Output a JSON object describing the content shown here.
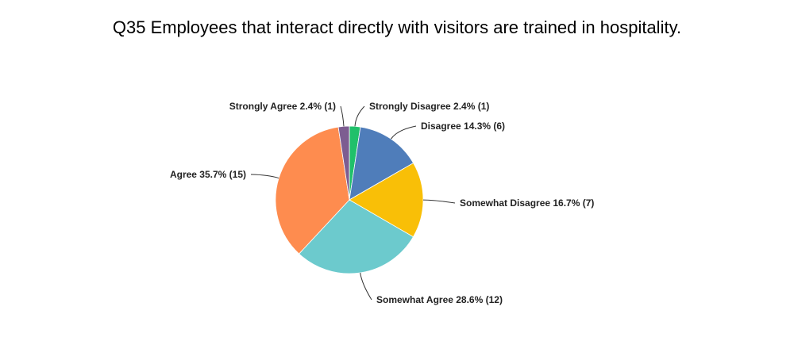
{
  "chart_data": {
    "type": "pie",
    "title": "Q35 Employees that interact directly with visitors are trained in hospitality.",
    "start_angle_deg": 0,
    "direction": "clockwise",
    "slices": [
      {
        "label": "Strongly Disagree 2.4% (1)",
        "name": "Strongly Disagree",
        "percent": 2.4,
        "count": 1,
        "color": "#20c06a"
      },
      {
        "label": "Disagree 14.3% (6)",
        "name": "Disagree",
        "percent": 14.3,
        "count": 6,
        "color": "#4f7dba"
      },
      {
        "label": "Somewhat Disagree 16.7% (7)",
        "name": "Somewhat Disagree",
        "percent": 16.7,
        "count": 7,
        "color": "#f9bf07"
      },
      {
        "label": "Somewhat Agree 28.6% (12)",
        "name": "Somewhat Agree",
        "percent": 28.6,
        "count": 12,
        "color": "#6ccacd"
      },
      {
        "label": "Agree 35.7% (15)",
        "name": "Agree",
        "percent": 35.7,
        "count": 15,
        "color": "#fe8c4f"
      },
      {
        "label": "Strongly Agree 2.4% (1)",
        "name": "Strongly Agree",
        "percent": 2.4,
        "count": 1,
        "color": "#7d5d91"
      }
    ]
  }
}
